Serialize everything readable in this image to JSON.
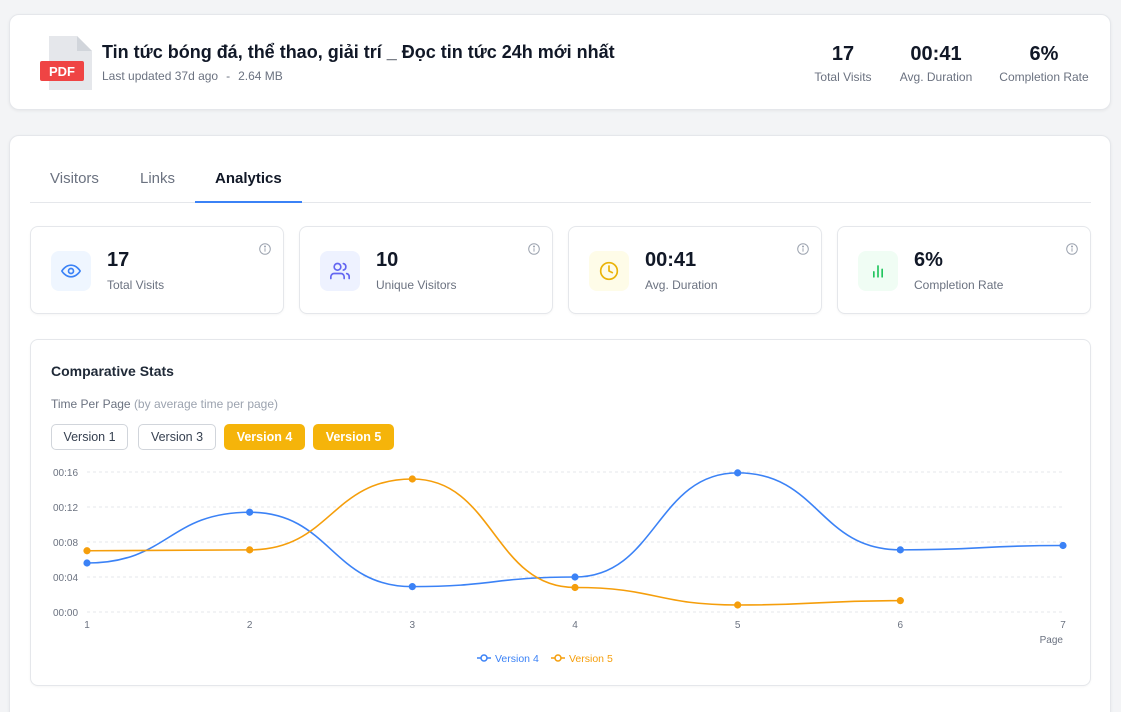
{
  "header": {
    "badge": "PDF",
    "title": "Tin tức bóng đá, thể thao, giải trí _ Đọc tin tức 24h mới nhất",
    "last_updated": "Last updated 37d ago",
    "separator": "-",
    "size": "2.64 MB",
    "stats": [
      {
        "value": "17",
        "label": "Total Visits"
      },
      {
        "value": "00:41",
        "label": "Avg. Duration"
      },
      {
        "value": "6%",
        "label": "Completion Rate"
      }
    ]
  },
  "tabs": [
    {
      "label": "Visitors",
      "active": false
    },
    {
      "label": "Links",
      "active": false
    },
    {
      "label": "Analytics",
      "active": true
    }
  ],
  "stat_cards": [
    {
      "value": "17",
      "label": "Total Visits",
      "icon": "eye-icon",
      "color": "#3b82f6"
    },
    {
      "value": "10",
      "label": "Unique Visitors",
      "icon": "users-icon",
      "color": "#6366f1"
    },
    {
      "value": "00:41",
      "label": "Avg. Duration",
      "icon": "clock-icon",
      "color": "#eab308"
    },
    {
      "value": "6%",
      "label": "Completion Rate",
      "icon": "bar-chart-icon",
      "color": "#22c55e"
    }
  ],
  "chart_panel": {
    "title": "Comparative Stats",
    "subtitle": "Time Per Page",
    "subtitle_note": "(by average time per page)",
    "versions": [
      {
        "label": "Version 1",
        "selected": false
      },
      {
        "label": "Version 3",
        "selected": false
      },
      {
        "label": "Version 4",
        "selected": true
      },
      {
        "label": "Version 5",
        "selected": true
      }
    ]
  },
  "chart_data": {
    "type": "line",
    "title": "",
    "xlabel": "Page",
    "ylabel": "",
    "x": [
      1,
      2,
      3,
      4,
      5,
      6,
      7
    ],
    "x_ticks": [
      "1",
      "2",
      "3",
      "4",
      "5",
      "6",
      "7"
    ],
    "y_ticks": [
      "00:00",
      "00:04",
      "00:08",
      "00:12",
      "00:16"
    ],
    "y_tick_values": [
      0,
      4,
      8,
      12,
      16
    ],
    "ylim": [
      0,
      16
    ],
    "grid": true,
    "legend_position": "bottom",
    "series": [
      {
        "name": "Version 4",
        "color": "#3b82f6",
        "x": [
          1,
          2,
          3,
          4,
          5,
          6,
          7
        ],
        "values": [
          5.6,
          11.4,
          2.9,
          4.0,
          15.9,
          7.1,
          7.6
        ]
      },
      {
        "name": "Version 5",
        "color": "#f59e0b",
        "x": [
          1,
          2,
          3,
          4,
          5,
          6
        ],
        "values": [
          7.0,
          7.1,
          15.2,
          2.8,
          0.8,
          1.3
        ]
      }
    ]
  }
}
